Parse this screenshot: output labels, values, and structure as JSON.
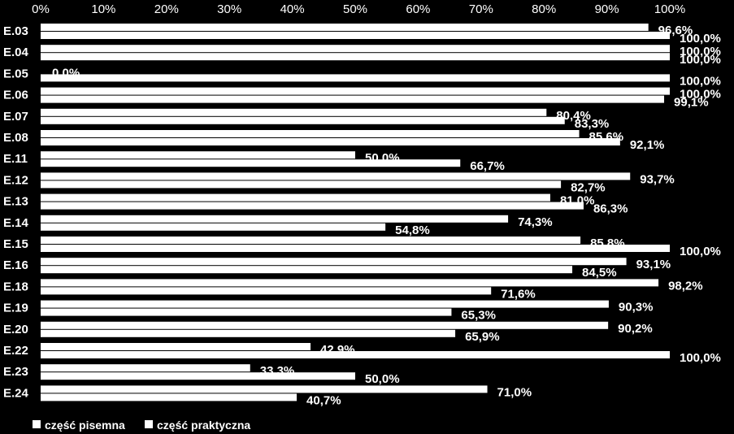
{
  "chart_data": {
    "type": "bar",
    "orientation": "horizontal",
    "background": "#000000",
    "bar_color": "#ffffff",
    "categories": [
      "E.03",
      "E.04",
      "E.05",
      "E.06",
      "E.07",
      "E.08",
      "E.11",
      "E.12",
      "E.13",
      "E.14",
      "E.15",
      "E.16",
      "E.18",
      "E.19",
      "E.20",
      "E.22",
      "E.23",
      "E.24"
    ],
    "x_ticks": [
      "0%",
      "10%",
      "20%",
      "30%",
      "40%",
      "50%",
      "60%",
      "70%",
      "80%",
      "90%",
      "100%"
    ],
    "xlim": [
      0,
      100
    ],
    "legend_position": "bottom-left",
    "series": [
      {
        "name": "część pisemna",
        "values": [
          96.6,
          100.0,
          0.0,
          100.0,
          80.4,
          85.6,
          50.0,
          93.7,
          81.0,
          74.3,
          85.8,
          93.1,
          98.2,
          90.3,
          90.2,
          42.9,
          33.3,
          71.0
        ],
        "labels": [
          "96,6%",
          "100,0%",
          "0.0%",
          "100,0%",
          "80,4%",
          "85,6%",
          "50,0%",
          "93,7%",
          "81,0%",
          "74,3%",
          "85,8%",
          "93,1%",
          "98,2%",
          "90,3%",
          "90,2%",
          "42,9%",
          "33,3%",
          "71,0%"
        ]
      },
      {
        "name": "część praktyczna",
        "values": [
          100.0,
          100.0,
          100.0,
          99.1,
          83.3,
          92.1,
          66.7,
          82.7,
          86.3,
          54.8,
          100.0,
          84.5,
          71.6,
          65.3,
          65.9,
          100.0,
          50.0,
          40.7
        ],
        "labels": [
          "100,0%",
          "100,0%",
          "100,0%",
          "99,1%",
          "83,3%",
          "92,1%",
          "66,7%",
          "82,7%",
          "86,3%",
          "54,8%",
          "100,0%",
          "84,5%",
          "71,6%",
          "65,3%",
          "65,9%",
          "100,0%",
          "50,0%",
          "40,7%"
        ]
      }
    ]
  }
}
